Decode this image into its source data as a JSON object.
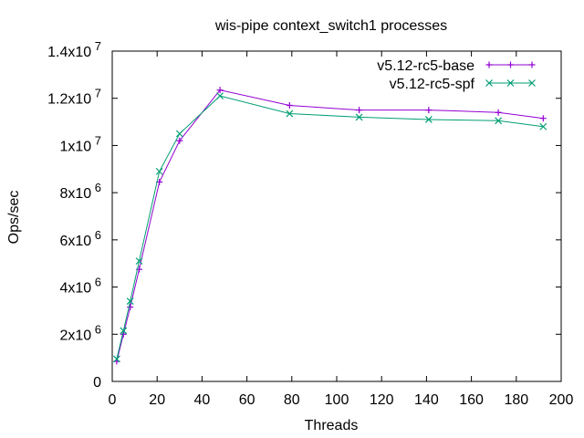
{
  "chart_data": {
    "type": "line",
    "title": "wis-pipe context_switch1 processes",
    "xlabel": "Threads",
    "ylabel": "Ops/sec",
    "xlim": [
      0,
      200
    ],
    "ylim": [
      0,
      14000000
    ],
    "grid": false,
    "legend_position": "top-right",
    "x_ticks": [
      {
        "value": 0,
        "label": "0"
      },
      {
        "value": 20,
        "label": "20"
      },
      {
        "value": 40,
        "label": "40"
      },
      {
        "value": 60,
        "label": "60"
      },
      {
        "value": 80,
        "label": "80"
      },
      {
        "value": 100,
        "label": "100"
      },
      {
        "value": 120,
        "label": "120"
      },
      {
        "value": 140,
        "label": "140"
      },
      {
        "value": 160,
        "label": "160"
      },
      {
        "value": 180,
        "label": "180"
      },
      {
        "value": 200,
        "label": "200"
      }
    ],
    "y_ticks": [
      {
        "value": 0,
        "mantissa": "0",
        "exponent": ""
      },
      {
        "value": 2000000,
        "mantissa": "2x10",
        "exponent": "6"
      },
      {
        "value": 4000000,
        "mantissa": "4x10",
        "exponent": "6"
      },
      {
        "value": 6000000,
        "mantissa": "6x10",
        "exponent": "6"
      },
      {
        "value": 8000000,
        "mantissa": "8x10",
        "exponent": "6"
      },
      {
        "value": 10000000,
        "mantissa": "1x10",
        "exponent": "7"
      },
      {
        "value": 12000000,
        "mantissa": "1.2x10",
        "exponent": "7"
      },
      {
        "value": 14000000,
        "mantissa": "1.4x10",
        "exponent": "7"
      }
    ],
    "series": [
      {
        "name": "v5.12-rc5-base",
        "color": "#9400d3",
        "marker": "plus",
        "x": [
          2,
          5,
          8,
          12,
          21,
          30,
          48,
          79,
          110,
          141,
          172,
          192
        ],
        "y": [
          850000,
          2000000,
          3150000,
          4750000,
          8450000,
          10200000,
          12350000,
          11700000,
          11500000,
          11500000,
          11400000,
          11150000
        ]
      },
      {
        "name": "v5.12-rc5-spf",
        "color": "#009e73",
        "marker": "cross",
        "x": [
          2,
          5,
          8,
          12,
          21,
          30,
          48,
          79,
          110,
          141,
          172,
          192
        ],
        "y": [
          950000,
          2150000,
          3400000,
          5100000,
          8900000,
          10500000,
          12100000,
          11350000,
          11200000,
          11100000,
          11050000,
          10800000
        ]
      }
    ]
  }
}
